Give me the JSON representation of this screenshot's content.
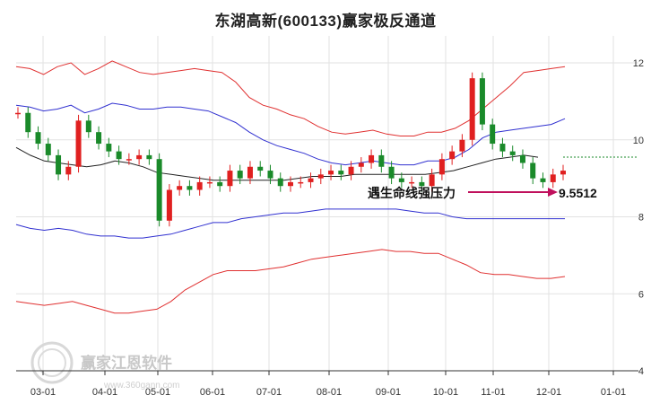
{
  "chart_data": {
    "type": "line",
    "title": "东湖高新(600133)赢家极反通道",
    "x_ticks": [
      "03-01",
      "04-01",
      "05-01",
      "06-01",
      "07-01",
      "08-01",
      "09-01",
      "10-01",
      "11-01",
      "12-01",
      "01-01"
    ],
    "y_ticks": [
      4,
      6,
      8,
      10,
      12
    ],
    "ylim": [
      4,
      12.7
    ],
    "grid": true,
    "series": [
      {
        "role": "outer-upper",
        "color": "#e03030",
        "values": [
          11.9,
          11.85,
          11.7,
          11.9,
          12.0,
          11.7,
          11.85,
          12.05,
          11.9,
          11.75,
          11.7,
          11.75,
          11.8,
          11.85,
          11.8,
          11.75,
          11.5,
          11.1,
          10.9,
          10.8,
          10.65,
          10.55,
          10.35,
          10.2,
          10.15,
          10.2,
          10.25,
          10.15,
          10.1,
          10.1,
          10.2,
          10.2,
          10.3,
          10.5,
          10.8,
          11.1,
          11.4,
          11.75,
          11.8,
          11.85,
          11.9
        ]
      },
      {
        "role": "inner-upper",
        "color": "#3030d0",
        "values": [
          10.9,
          10.85,
          10.75,
          10.8,
          10.9,
          10.7,
          10.8,
          10.95,
          10.9,
          10.8,
          10.8,
          10.85,
          10.85,
          10.8,
          10.75,
          10.6,
          10.45,
          10.2,
          10.0,
          9.85,
          9.75,
          9.65,
          9.5,
          9.4,
          9.35,
          9.4,
          9.45,
          9.4,
          9.35,
          9.35,
          9.45,
          9.45,
          9.55,
          9.75,
          10.05,
          10.2,
          10.25,
          10.3,
          10.35,
          10.4,
          10.55
        ]
      },
      {
        "role": "middle",
        "color": "#222222",
        "values": [
          9.8,
          9.6,
          9.45,
          9.4,
          9.35,
          9.3,
          9.35,
          9.45,
          9.4,
          9.3,
          9.15,
          9.1,
          9.05,
          9.0,
          8.95,
          8.95,
          8.95,
          8.95,
          8.95,
          8.95,
          9.0,
          9.05,
          9.05,
          9.05,
          9.1,
          9.1,
          9.1,
          9.1,
          9.1,
          9.1,
          9.15,
          9.2,
          9.3,
          9.4,
          9.5,
          9.55,
          9.6,
          9.55
        ]
      },
      {
        "role": "inner-lower",
        "color": "#3030d0",
        "values": [
          7.8,
          7.7,
          7.65,
          7.7,
          7.65,
          7.55,
          7.5,
          7.5,
          7.45,
          7.45,
          7.5,
          7.55,
          7.65,
          7.75,
          7.85,
          7.85,
          7.95,
          8.0,
          8.05,
          8.1,
          8.1,
          8.15,
          8.2,
          8.2,
          8.2,
          8.2,
          8.2,
          8.2,
          8.15,
          8.1,
          8.1,
          8.0,
          7.95,
          7.95,
          7.95,
          7.95,
          7.95,
          7.95,
          7.95,
          7.95
        ]
      },
      {
        "role": "outer-lower",
        "color": "#e03030",
        "values": [
          5.8,
          5.75,
          5.7,
          5.75,
          5.8,
          5.7,
          5.6,
          5.5,
          5.5,
          5.55,
          5.6,
          5.8,
          6.1,
          6.3,
          6.5,
          6.6,
          6.6,
          6.6,
          6.65,
          6.7,
          6.8,
          6.9,
          6.95,
          7.0,
          7.05,
          7.1,
          7.15,
          7.1,
          7.1,
          7.05,
          7.05,
          6.9,
          6.75,
          6.55,
          6.5,
          6.5,
          6.45,
          6.4,
          6.4,
          6.45
        ]
      }
    ],
    "price": [
      10.7,
      10.2,
      9.9,
      9.6,
      9.1,
      9.3,
      10.5,
      10.2,
      9.9,
      9.7,
      9.5,
      9.5,
      9.6,
      9.5,
      7.9,
      8.7,
      8.8,
      8.7,
      8.9,
      8.9,
      8.8,
      9.2,
      9.0,
      9.3,
      9.2,
      9.0,
      8.8,
      8.9,
      8.9,
      9.0,
      9.1,
      9.2,
      9.1,
      9.3,
      9.4,
      9.6,
      9.3,
      9.0,
      8.9,
      8.9,
      8.8,
      9.1,
      9.5,
      9.7,
      10.0,
      11.6,
      10.4,
      9.9,
      9.7,
      9.6,
      9.4,
      9.0,
      8.9,
      9.1,
      9.2
    ],
    "reference_value": 9.5512,
    "annotation": "遇生命线强压力",
    "value_label": "9.5512"
  },
  "watermark": {
    "name": "赢家江恩软件",
    "url": "www.360gann.com"
  }
}
